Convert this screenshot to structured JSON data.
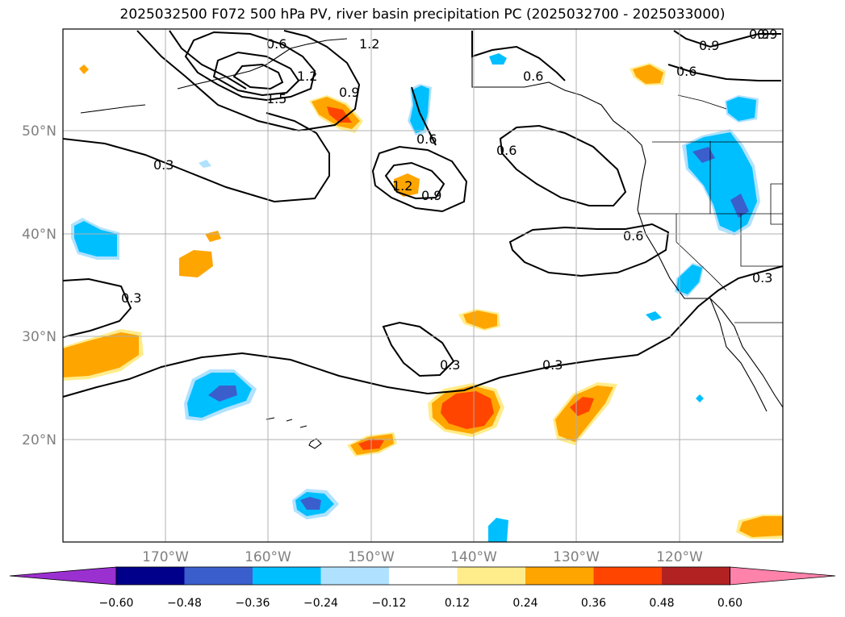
{
  "title": "2025032500 F072 500 hPa PV, river basin precipitation PC (2025032700 - 2025033000)",
  "map": {
    "lon_range": [
      -180,
      -110
    ],
    "lat_range": [
      10,
      60
    ],
    "lat_labels": [
      "50°N",
      "40°N",
      "30°N",
      "20°N"
    ],
    "lon_labels": [
      "170°W",
      "160°W",
      "150°W",
      "140°W",
      "130°W",
      "120°W"
    ]
  },
  "contour_labels": [
    "0.6",
    "1.2",
    "0.9",
    "1.2",
    "1.5",
    "0.9",
    "0.3",
    "0.6",
    "1.2",
    "0.9",
    "0.6",
    "0.6",
    "0.9",
    "0.9",
    "0.6",
    "0.6",
    "0.3",
    "0.3",
    "0.3",
    "0.3"
  ],
  "colorbar": {
    "ticks": [
      "−0.60",
      "−0.48",
      "−0.36",
      "−0.24",
      "−0.12",
      "0.12",
      "0.24",
      "0.36",
      "0.48",
      "0.60"
    ],
    "colors": [
      "#9b30d0",
      "#00008b",
      "#3a5fcd",
      "#00bfff",
      "#b0e2ff",
      "#ffffff",
      "#ffec8b",
      "#ffa500",
      "#ff4500",
      "#b22222",
      "#ff82ab"
    ]
  }
}
